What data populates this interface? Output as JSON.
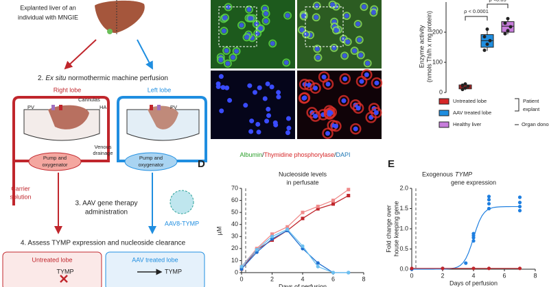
{
  "schematic": {
    "liver_caption": [
      "Explanted liver of an",
      "individual with MNGIE"
    ],
    "step2": [
      "2.",
      "Ex situ",
      "normothermic machine perfusion"
    ],
    "right_lobe": "Right lobe",
    "left_lobe": "Left lobe",
    "cannulas": "Cannulas",
    "pv_right": "PV",
    "ha": "HA",
    "pv_left": "PV",
    "venous_drainage": [
      "Venous",
      "drainage"
    ],
    "pump_right": [
      "Pump and",
      "oxygenator"
    ],
    "pump_left": [
      "Pump and",
      "oxygenator"
    ],
    "carrier": [
      "Carrier",
      "solution"
    ],
    "step3": [
      "3. AAV gene therapy",
      "administration"
    ],
    "vector": "AAV8-TYMP",
    "step4": "4. Assess TYMP expression and nucleoside clearance",
    "untreated_box": "Untreated lobe",
    "treated_box": "AAV treated lobe",
    "tymp_untreated": "TYMP",
    "tymp_treated": "TYMP"
  },
  "microscopy": {
    "caption": [
      "Albumin",
      "/",
      "Thymidine phosphorylase",
      "/",
      "DAPI"
    ]
  },
  "chart_data": [
    {
      "type": "box",
      "ylabel": [
        "Enzyme activity",
        "(nmols Thi/h x mg protein)"
      ],
      "categories": [
        "Untreated lobe",
        "AAV treated lobe",
        "Healthy liver"
      ],
      "colors": [
        "#d62728",
        "#1f8ee0",
        "#c77ddb"
      ],
      "points": [
        [
          10,
          15,
          20,
          24,
          28
        ],
        [
          140,
          160,
          172,
          185,
          210
        ],
        [
          195,
          205,
          218,
          230,
          245
        ]
      ],
      "boxes": [
        {
          "min": 8,
          "q1": 12,
          "median": 18,
          "q3": 25,
          "max": 28
        },
        {
          "min": 138,
          "q1": 150,
          "median": 172,
          "q3": 192,
          "max": 212
        },
        {
          "min": 193,
          "q1": 200,
          "median": 220,
          "q3": 235,
          "max": 246
        }
      ],
      "ylim": [
        0,
        300
      ],
      "yticks": [
        0,
        100,
        200
      ],
      "annotations": [
        "ρ < 0.0001",
        "ρ <0.05"
      ],
      "groups": [
        [
          "Patient",
          "explant"
        ],
        "Organ donor"
      ]
    },
    {
      "type": "line",
      "letter": "D",
      "title": [
        "Nucleoside levels",
        "in perfusate"
      ],
      "xlabel": "Days of perfusion",
      "ylabel": "µM",
      "x": [
        0,
        1,
        2,
        3,
        4,
        5,
        6,
        7
      ],
      "series": [
        {
          "color": "#c0262c",
          "marker": "square",
          "values": [
            3,
            19,
            27,
            35,
            45,
            53,
            57,
            64
          ]
        },
        {
          "color": "#f08a8a",
          "marker": "square",
          "values": [
            5,
            20,
            32,
            38,
            50,
            55,
            60,
            69
          ]
        },
        {
          "color": "#1f6fd0",
          "marker": "circle",
          "values": [
            3,
            17,
            28,
            35,
            20,
            8,
            0,
            0
          ]
        },
        {
          "color": "#6cc0f0",
          "marker": "circle",
          "values": [
            5,
            19,
            30,
            36,
            22,
            5,
            0,
            0
          ]
        }
      ],
      "xlim": [
        0,
        8
      ],
      "ylim": [
        0,
        70
      ],
      "xticks": [
        0,
        2,
        4,
        6,
        8
      ],
      "yticks": [
        0,
        10,
        20,
        30,
        40,
        50,
        60,
        70
      ]
    },
    {
      "type": "scatter",
      "letter": "E",
      "title": [
        "Exogenous",
        "TYMP",
        "gene expression"
      ],
      "xlabel": "Days of perfusion",
      "ylabel": [
        "Fold change over",
        "house keeping gene"
      ],
      "series": [
        {
          "color": "#1f7fe0",
          "x": [
            0,
            2,
            3.5,
            4,
            4,
            4,
            4,
            5,
            5,
            5,
            5,
            7,
            7,
            7,
            7
          ],
          "values": [
            0,
            0.02,
            0.15,
            0.7,
            0.78,
            0.83,
            0.88,
            1.5,
            1.62,
            1.72,
            1.8,
            1.45,
            1.55,
            1.65,
            1.78
          ]
        },
        {
          "color": "#c0262c",
          "x": [
            0,
            2,
            4,
            5,
            7
          ],
          "values": [
            0.02,
            0.02,
            0.02,
            0.02,
            0.02
          ]
        }
      ],
      "xlim": [
        0,
        8
      ],
      "ylim": [
        0,
        2
      ],
      "xticks": [
        0,
        2,
        4,
        6,
        8
      ],
      "yticks": [
        {
          "value": 0,
          "label": "0.0"
        },
        0.5,
        {
          "value": 1,
          "label": "1.0"
        },
        1.5,
        {
          "value": 2,
          "label": "2.0"
        }
      ]
    }
  ]
}
